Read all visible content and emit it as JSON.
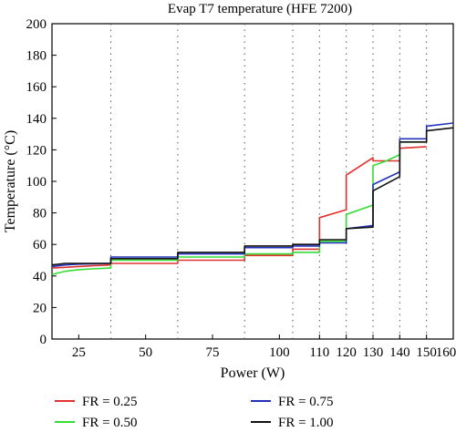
{
  "chart_data": {
    "type": "line",
    "title": "Evap T7 temperature (HFE 7200)",
    "xlabel": "Power (W)",
    "ylabel": "Temperature (°C)",
    "xlim": [
      15,
      165
    ],
    "ylim": [
      0,
      200
    ],
    "xticks": [
      25,
      50,
      75,
      100,
      125,
      150
    ],
    "xtick_labels": [
      "25",
      "50",
      "75",
      "100",
      "110",
      "120",
      "130",
      "140",
      "150",
      "160"
    ],
    "xtick_positions": [
      25,
      50,
      75,
      100,
      115,
      125,
      135,
      145,
      155,
      165
    ],
    "yticks": [
      0,
      20,
      40,
      60,
      80,
      100,
      120,
      140,
      160,
      180,
      200
    ],
    "vertical_grid_x": [
      37,
      62,
      87,
      105,
      115,
      125,
      135,
      145,
      155
    ],
    "grid": "vertical dotted lines at power step changes",
    "legend_position": "bottom",
    "series": [
      {
        "name": "FR = 0.25",
        "color": "#e03030",
        "points": [
          [
            15,
            45
          ],
          [
            20,
            45.5
          ],
          [
            25,
            46
          ],
          [
            30,
            46.5
          ],
          [
            37,
            47
          ],
          [
            37,
            48
          ],
          [
            62,
            48
          ],
          [
            62,
            50
          ],
          [
            87,
            50
          ],
          [
            87,
            53
          ],
          [
            105,
            53
          ],
          [
            105,
            57
          ],
          [
            115,
            57
          ],
          [
            115,
            77
          ],
          [
            125,
            82
          ],
          [
            125,
            104
          ],
          [
            135,
            115
          ],
          [
            135,
            113
          ],
          [
            145,
            113
          ],
          [
            145,
            121
          ],
          [
            155,
            122
          ]
        ]
      },
      {
        "name": "FR = 0.50",
        "color": "#33dd33",
        "points": [
          [
            15,
            41
          ],
          [
            20,
            43
          ],
          [
            25,
            44
          ],
          [
            30,
            44.5
          ],
          [
            37,
            45
          ],
          [
            37,
            50
          ],
          [
            62,
            50
          ],
          [
            62,
            52
          ],
          [
            87,
            52
          ],
          [
            87,
            54
          ],
          [
            105,
            54
          ],
          [
            105,
            55
          ],
          [
            115,
            55
          ],
          [
            115,
            62
          ],
          [
            125,
            62
          ],
          [
            125,
            79
          ],
          [
            135,
            85
          ],
          [
            135,
            110
          ],
          [
            140,
            113
          ],
          [
            145,
            117
          ],
          [
            145,
            125
          ],
          [
            155,
            125
          ]
        ]
      },
      {
        "name": "FR = 0.75",
        "color": "#2233bb",
        "points": [
          [
            15,
            46
          ],
          [
            20,
            47
          ],
          [
            25,
            47.5
          ],
          [
            37,
            48
          ],
          [
            37,
            52
          ],
          [
            62,
            52
          ],
          [
            62,
            54
          ],
          [
            87,
            54
          ],
          [
            87,
            58
          ],
          [
            105,
            58
          ],
          [
            105,
            59
          ],
          [
            115,
            59
          ],
          [
            115,
            61
          ],
          [
            125,
            61
          ],
          [
            125,
            70
          ],
          [
            135,
            72
          ],
          [
            135,
            98
          ],
          [
            145,
            106
          ],
          [
            145,
            127
          ],
          [
            155,
            127
          ],
          [
            155,
            135
          ],
          [
            165,
            137
          ]
        ]
      },
      {
        "name": "FR = 1.00",
        "color": "#111111",
        "points": [
          [
            15,
            47
          ],
          [
            20,
            48
          ],
          [
            25,
            48
          ],
          [
            37,
            48
          ],
          [
            37,
            51
          ],
          [
            62,
            51
          ],
          [
            62,
            55
          ],
          [
            87,
            55
          ],
          [
            87,
            59
          ],
          [
            105,
            59
          ],
          [
            105,
            60
          ],
          [
            115,
            60
          ],
          [
            115,
            63
          ],
          [
            125,
            63
          ],
          [
            125,
            70
          ],
          [
            135,
            71
          ],
          [
            135,
            94
          ],
          [
            145,
            103
          ],
          [
            145,
            125
          ],
          [
            155,
            125
          ],
          [
            155,
            132
          ],
          [
            165,
            134
          ]
        ]
      }
    ]
  }
}
